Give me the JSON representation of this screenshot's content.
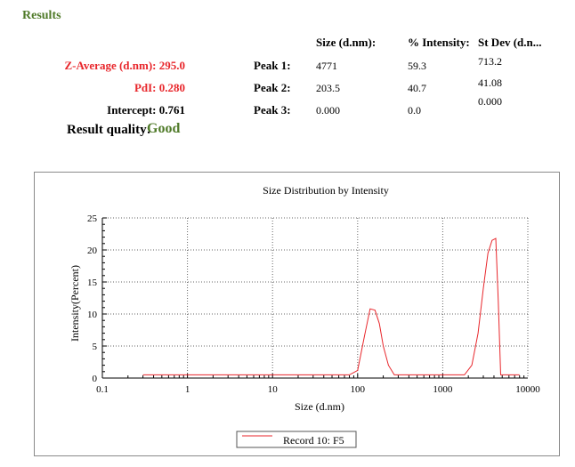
{
  "results": {
    "title": "Results",
    "columns": [
      "Size (d.nm):",
      "% Intensity:",
      "St Dev (d.n..."
    ],
    "summary": [
      {
        "label": "Z-Average (d.nm): 295.0",
        "color": "#e8262b"
      },
      {
        "label": "PdI: 0.280",
        "color": "#e8262b"
      },
      {
        "label": "Intercept: 0.761",
        "color": "#000000"
      }
    ],
    "peaks": [
      {
        "label": "Peak 1:",
        "size": "4771",
        "intensity": "59.3",
        "stdev": "713.2"
      },
      {
        "label": "Peak 2:",
        "size": "203.5",
        "intensity": "40.7",
        "stdev": "41.08"
      },
      {
        "label": "Peak 3:",
        "size": "0.000",
        "intensity": "0.0",
        "stdev": "0.000"
      }
    ],
    "quality_label": "Result quality:",
    "quality_value": "Good"
  },
  "chart_data": {
    "type": "line",
    "title": "Size Distribution by Intensity",
    "xlabel": "Size (d.nm)",
    "ylabel": "Intensity(Percent)",
    "x_scale": "log",
    "xlim": [
      0.1,
      10000
    ],
    "ylim": [
      0,
      25
    ],
    "x_ticks": [
      "0.1",
      "1",
      "10",
      "100",
      "1000",
      "10000"
    ],
    "y_ticks": [
      "0",
      "5",
      "10",
      "15",
      "20",
      "25"
    ],
    "grid": true,
    "legend_position": "bottom-center",
    "series": [
      {
        "name": "Record 10: F5",
        "color": "#e8262b",
        "x": [
          0.3,
          80,
          100,
          120,
          140,
          160,
          180,
          200,
          230,
          270,
          320,
          500,
          1000,
          1800,
          2200,
          2600,
          3000,
          3400,
          3800,
          4200,
          4500,
          4800,
          6000,
          8000
        ],
        "y": [
          0.5,
          0.5,
          1.2,
          6.5,
          10.8,
          10.6,
          8.5,
          5.0,
          2.0,
          0.5,
          0.5,
          0.5,
          0.5,
          0.5,
          2.0,
          7.0,
          14.0,
          19.5,
          21.5,
          21.8,
          12.0,
          0.5,
          0.5,
          0.5
        ]
      }
    ]
  }
}
